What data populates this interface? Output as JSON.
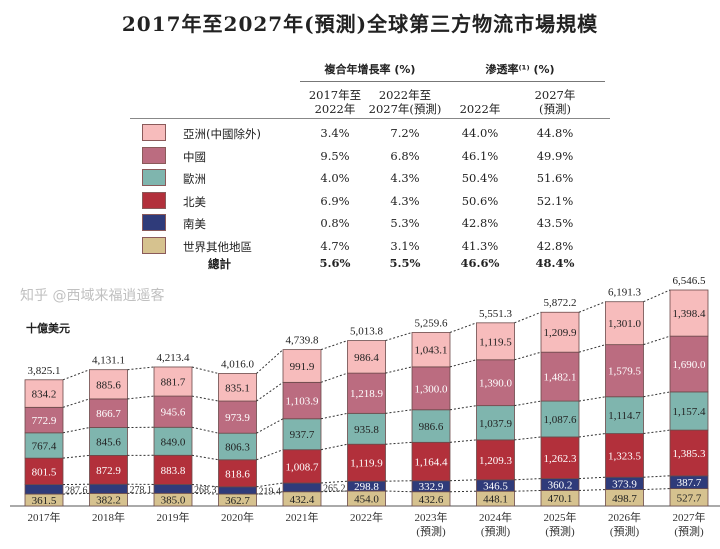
{
  "title": "2017年至2027年(預測)全球第三方物流市場規模",
  "table": {
    "group_headers": [
      "複合年增長率 (%)",
      "滲透率⁽¹⁾ (%)"
    ],
    "col_headers": [
      "2017年至\n2022年",
      "2022年至\n2027年(預測)",
      "2022年",
      "2027年\n(預測)"
    ],
    "rows": [
      {
        "label": "亞洲(中國除外)",
        "color": "#f7bcbc",
        "values": [
          "3.4%",
          "7.2%",
          "44.0%",
          "44.8%"
        ]
      },
      {
        "label": "中國",
        "color": "#bb6c80",
        "values": [
          "9.5%",
          "6.8%",
          "46.1%",
          "49.9%"
        ]
      },
      {
        "label": "歐洲",
        "color": "#7fb5ae",
        "values": [
          "4.0%",
          "4.3%",
          "50.4%",
          "51.6%"
        ]
      },
      {
        "label": "北美",
        "color": "#b2303b",
        "values": [
          "6.9%",
          "4.3%",
          "50.6%",
          "52.1%"
        ]
      },
      {
        "label": "南美",
        "color": "#2f3b7a",
        "values": [
          "0.8%",
          "5.3%",
          "42.8%",
          "43.5%"
        ]
      },
      {
        "label": "世界其他地區",
        "color": "#d6c28f",
        "values": [
          "4.7%",
          "3.1%",
          "41.3%",
          "42.8%"
        ]
      }
    ],
    "total": {
      "label": "總計",
      "values": [
        "5.6%",
        "5.5%",
        "46.6%",
        "48.4%"
      ]
    }
  },
  "chart_data": {
    "type": "bar",
    "stacked": true,
    "unit_label": "十億美元",
    "categories": [
      "2017年",
      "2018年",
      "2019年",
      "2020年",
      "2021年",
      "2022年",
      "2023年\n(預測)",
      "2024年\n(預測)",
      "2025年\n(預測)",
      "2026年\n(預測)",
      "2027年\n(預測)"
    ],
    "totals": [
      "3,825.1",
      "4,131.1",
      "4,213.4",
      "4,016.0",
      "4,739.8",
      "5,013.8",
      "5,259.6",
      "5,551.3",
      "5,872.2",
      "6,191.3",
      "6,546.5"
    ],
    "series": [
      {
        "name": "世界其他地區",
        "color": "#d6c28f",
        "text": "#222",
        "values": [
          361.5,
          382.2,
          385.0,
          362.7,
          432.4,
          454.0,
          432.6,
          448.1,
          470.1,
          498.7,
          527.7
        ]
      },
      {
        "name": "南美",
        "color": "#2f3b7a",
        "text": "#fff",
        "values": [
          287.6,
          278.1,
          268.3,
          219.4,
          265.2,
          298.8,
          332.9,
          346.5,
          360.2,
          373.9,
          387.7
        ]
      },
      {
        "name": "北美",
        "color": "#b2303b",
        "text": "#fff",
        "values": [
          801.5,
          872.9,
          883.8,
          818.6,
          1008.7,
          1119.9,
          1164.4,
          1209.3,
          1262.3,
          1323.5,
          1385.3
        ]
      },
      {
        "name": "歐洲",
        "color": "#7fb5ae",
        "text": "#222",
        "values": [
          767.4,
          845.6,
          849.0,
          806.3,
          937.7,
          935.8,
          986.6,
          1037.9,
          1087.6,
          1114.7,
          1157.4
        ]
      },
      {
        "name": "中國",
        "color": "#bb6c80",
        "text": "#fff",
        "values": [
          772.9,
          866.7,
          945.6,
          973.9,
          1103.9,
          1218.9,
          1300.0,
          1390.0,
          1482.1,
          1579.5,
          1690.0
        ]
      },
      {
        "name": "亞洲(中國除外)",
        "color": "#f7bcbc",
        "text": "#222",
        "values": [
          834.2,
          885.6,
          881.7,
          835.1,
          991.9,
          986.4,
          1043.1,
          1119.5,
          1209.9,
          1301.0,
          1398.4
        ]
      }
    ],
    "ylim": [
      0,
      6546.5
    ]
  },
  "watermark": "知乎 @西域来福逍遥客"
}
